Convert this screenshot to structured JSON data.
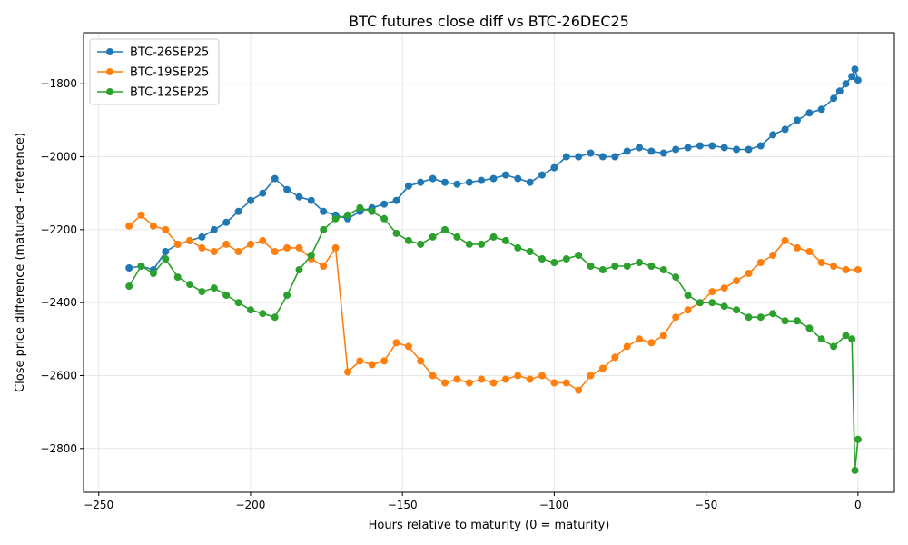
{
  "chart_data": {
    "type": "line",
    "title": "BTC futures close diff vs BTC-26DEC25",
    "xlabel": "Hours relative to maturity (0 = maturity)",
    "ylabel": "Close price difference (matured - reference)",
    "xlim": [
      -255,
      12
    ],
    "ylim": [
      -2920,
      -1660
    ],
    "xticks": [
      -250,
      -200,
      -150,
      -100,
      -50,
      0
    ],
    "yticks": [
      -2800,
      -2600,
      -2400,
      -2200,
      -2000,
      -1800
    ],
    "grid": true,
    "legend_position": "top-left",
    "series": [
      {
        "name": "BTC-26SEP25",
        "color": "#1f77b4",
        "x": [
          -240,
          -236,
          -232,
          -228,
          -224,
          -220,
          -216,
          -212,
          -208,
          -204,
          -200,
          -196,
          -192,
          -188,
          -184,
          -180,
          -176,
          -172,
          -168,
          -164,
          -160,
          -156,
          -152,
          -148,
          -144,
          -140,
          -136,
          -132,
          -128,
          -124,
          -120,
          -116,
          -112,
          -108,
          -104,
          -100,
          -96,
          -92,
          -88,
          -84,
          -80,
          -76,
          -72,
          -68,
          -64,
          -60,
          -56,
          -52,
          -48,
          -44,
          -40,
          -36,
          -32,
          -28,
          -24,
          -20,
          -16,
          -12,
          -8,
          -6,
          -4,
          -2,
          -1,
          0
        ],
        "y": [
          -2305,
          -2300,
          -2310,
          -2260,
          -2240,
          -2230,
          -2220,
          -2200,
          -2180,
          -2150,
          -2120,
          -2100,
          -2060,
          -2090,
          -2110,
          -2120,
          -2150,
          -2160,
          -2170,
          -2150,
          -2140,
          -2130,
          -2120,
          -2080,
          -2070,
          -2060,
          -2070,
          -2075,
          -2070,
          -2065,
          -2060,
          -2050,
          -2060,
          -2070,
          -2050,
          -2030,
          -2000,
          -2000,
          -1990,
          -2000,
          -2000,
          -1985,
          -1975,
          -1985,
          -1990,
          -1980,
          -1975,
          -1970,
          -1970,
          -1975,
          -1980,
          -1980,
          -1970,
          -1940,
          -1925,
          -1900,
          -1880,
          -1870,
          -1840,
          -1820,
          -1800,
          -1780,
          -1760,
          -1790
        ]
      },
      {
        "name": "BTC-19SEP25",
        "color": "#ff7f0e",
        "x": [
          -240,
          -236,
          -232,
          -228,
          -224,
          -220,
          -216,
          -212,
          -208,
          -204,
          -200,
          -196,
          -192,
          -188,
          -184,
          -180,
          -176,
          -172,
          -168,
          -164,
          -160,
          -156,
          -152,
          -148,
          -144,
          -140,
          -136,
          -132,
          -128,
          -124,
          -120,
          -116,
          -112,
          -108,
          -104,
          -100,
          -96,
          -92,
          -88,
          -84,
          -80,
          -76,
          -72,
          -68,
          -64,
          -60,
          -56,
          -52,
          -48,
          -44,
          -40,
          -36,
          -32,
          -28,
          -24,
          -20,
          -16,
          -12,
          -8,
          -4,
          0
        ],
        "y": [
          -2190,
          -2160,
          -2190,
          -2200,
          -2240,
          -2230,
          -2250,
          -2260,
          -2240,
          -2260,
          -2240,
          -2230,
          -2260,
          -2250,
          -2250,
          -2280,
          -2300,
          -2250,
          -2590,
          -2560,
          -2570,
          -2560,
          -2510,
          -2520,
          -2560,
          -2600,
          -2620,
          -2610,
          -2620,
          -2610,
          -2620,
          -2610,
          -2600,
          -2610,
          -2600,
          -2620,
          -2620,
          -2640,
          -2600,
          -2580,
          -2550,
          -2520,
          -2500,
          -2510,
          -2490,
          -2440,
          -2420,
          -2400,
          -2370,
          -2360,
          -2340,
          -2320,
          -2290,
          -2270,
          -2230,
          -2250,
          -2260,
          -2290,
          -2300,
          -2310,
          -2310
        ]
      },
      {
        "name": "BTC-12SEP25",
        "color": "#2ca02c",
        "x": [
          -240,
          -236,
          -232,
          -228,
          -224,
          -220,
          -216,
          -212,
          -208,
          -204,
          -200,
          -196,
          -192,
          -188,
          -184,
          -180,
          -176,
          -172,
          -168,
          -164,
          -160,
          -156,
          -152,
          -148,
          -144,
          -140,
          -136,
          -132,
          -128,
          -124,
          -120,
          -116,
          -112,
          -108,
          -104,
          -100,
          -96,
          -92,
          -88,
          -84,
          -80,
          -76,
          -72,
          -68,
          -64,
          -60,
          -56,
          -52,
          -48,
          -44,
          -40,
          -36,
          -32,
          -28,
          -24,
          -20,
          -16,
          -12,
          -8,
          -4,
          -2,
          -1,
          0
        ],
        "y": [
          -2355,
          -2300,
          -2320,
          -2280,
          -2330,
          -2350,
          -2370,
          -2360,
          -2380,
          -2400,
          -2420,
          -2430,
          -2440,
          -2380,
          -2310,
          -2270,
          -2200,
          -2170,
          -2160,
          -2140,
          -2150,
          -2170,
          -2210,
          -2230,
          -2240,
          -2220,
          -2200,
          -2220,
          -2240,
          -2240,
          -2220,
          -2230,
          -2250,
          -2260,
          -2280,
          -2290,
          -2280,
          -2270,
          -2300,
          -2310,
          -2300,
          -2300,
          -2290,
          -2300,
          -2310,
          -2330,
          -2380,
          -2400,
          -2400,
          -2410,
          -2420,
          -2440,
          -2440,
          -2430,
          -2450,
          -2450,
          -2470,
          -2500,
          -2520,
          -2490,
          -2500,
          -2860,
          -2775
        ]
      }
    ]
  }
}
